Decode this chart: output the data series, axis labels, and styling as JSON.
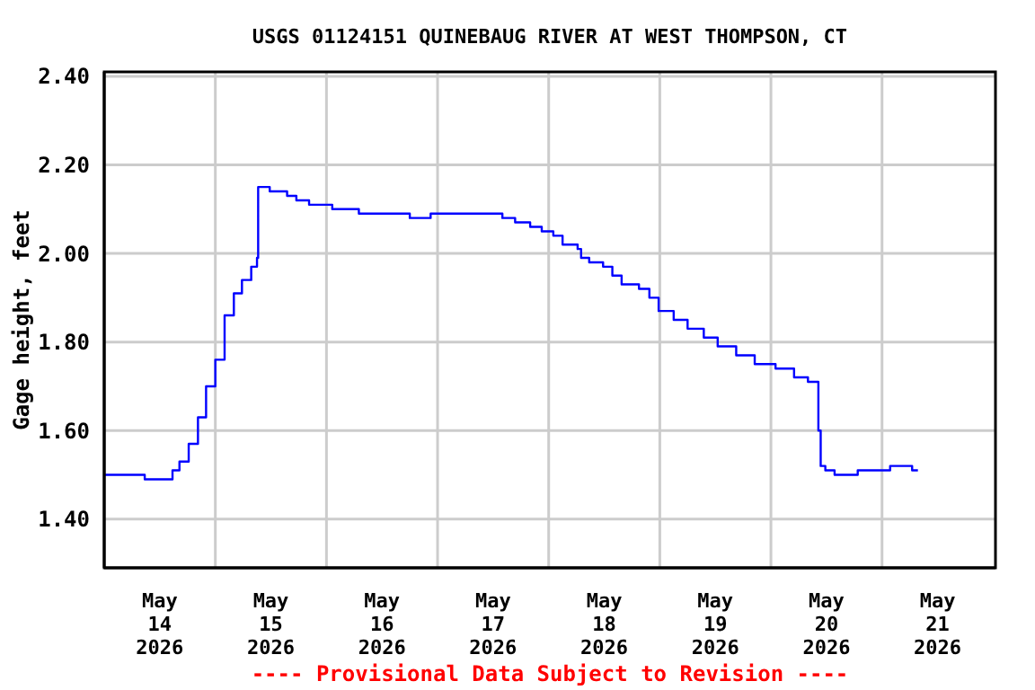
{
  "chart_data": {
    "type": "step",
    "title": "USGS 01124151 QUINEBAUG RIVER AT WEST THOMPSON, CT",
    "ylabel": "Gage height, feet",
    "annotations": [
      "---- Provisional Data Subject to Revision ----"
    ],
    "x": [
      "2026-05-13T12:00",
      "2026-05-13T20:45",
      "2026-05-14T02:45",
      "2026-05-14T04:15",
      "2026-05-14T06:15",
      "2026-05-14T08:15",
      "2026-05-14T10:00",
      "2026-05-14T12:00",
      "2026-05-14T14:00",
      "2026-05-14T16:00",
      "2026-05-14T17:45",
      "2026-05-14T19:45",
      "2026-05-14T21:00",
      "2026-05-14T21:15",
      "2026-05-14T23:45",
      "2026-05-15T03:30",
      "2026-05-15T05:30",
      "2026-05-15T08:15",
      "2026-05-15T13:15",
      "2026-05-15T19:00",
      "2026-05-16T06:00",
      "2026-05-16T10:30",
      "2026-05-16T21:30",
      "2026-05-17T02:00",
      "2026-05-17T04:45",
      "2026-05-17T08:00",
      "2026-05-17T10:30",
      "2026-05-17T13:00",
      "2026-05-17T15:00",
      "2026-05-17T18:15",
      "2026-05-17T19:00",
      "2026-05-17T20:45",
      "2026-05-17T23:45",
      "2026-05-18T01:45",
      "2026-05-18T03:45",
      "2026-05-18T07:30",
      "2026-05-18T09:45",
      "2026-05-18T11:45",
      "2026-05-18T15:00",
      "2026-05-18T18:00",
      "2026-05-18T21:30",
      "2026-05-19T00:30",
      "2026-05-19T04:30",
      "2026-05-19T08:30",
      "2026-05-19T13:00",
      "2026-05-19T17:00",
      "2026-05-19T20:00",
      "2026-05-19T22:15",
      "2026-05-19T22:45",
      "2026-05-19T23:45",
      "2026-05-20T01:45",
      "2026-05-20T06:45",
      "2026-05-20T13:45",
      "2026-05-20T18:30",
      "2026-05-20T19:45"
    ],
    "values": [
      1.5,
      1.49,
      1.51,
      1.53,
      1.57,
      1.63,
      1.7,
      1.76,
      1.86,
      1.91,
      1.94,
      1.97,
      1.99,
      2.15,
      2.14,
      2.13,
      2.12,
      2.11,
      2.1,
      2.09,
      2.08,
      2.09,
      2.09,
      2.08,
      2.07,
      2.06,
      2.05,
      2.04,
      2.02,
      2.01,
      1.99,
      1.98,
      1.97,
      1.95,
      1.93,
      1.92,
      1.9,
      1.87,
      1.85,
      1.83,
      1.81,
      1.79,
      1.77,
      1.75,
      1.74,
      1.72,
      1.71,
      1.6,
      1.52,
      1.51,
      1.5,
      1.51,
      1.52,
      1.51,
      1.51
    ],
    "color": "#0000ff",
    "xlim": [
      "2026-05-13T12:00",
      "2026-05-21T12:30"
    ],
    "xticks": [
      {
        "value": "2026-05-14",
        "label": "May\n14\n2026"
      },
      {
        "value": "2026-05-14T12:00",
        "label": null
      },
      {
        "value": "2026-05-15",
        "label": "May\n15\n2026"
      },
      {
        "value": "2026-05-15T12:00",
        "label": null
      },
      {
        "value": "2026-05-16",
        "label": "May\n16\n2026"
      },
      {
        "value": "2026-05-16T12:00",
        "label": null
      },
      {
        "value": "2026-05-17",
        "label": "May\n17\n2026"
      },
      {
        "value": "2026-05-17T12:00",
        "label": null
      },
      {
        "value": "2026-05-18",
        "label": "May\n18\n2026"
      },
      {
        "value": "2026-05-18T12:00",
        "label": null
      },
      {
        "value": "2026-05-19",
        "label": "May\n19\n2026"
      },
      {
        "value": "2026-05-19T12:00",
        "label": null
      },
      {
        "value": "2026-05-20",
        "label": "May\n20\n2026"
      },
      {
        "value": "2026-05-20T12:00",
        "label": null
      },
      {
        "value": "2026-05-21",
        "label": "May\n21\n2026"
      }
    ],
    "ylim": [
      1.29,
      2.41
    ],
    "yticks": [
      {
        "value": 1.4,
        "label": "1.40"
      },
      {
        "value": 1.6,
        "label": "1.60"
      },
      {
        "value": 1.8,
        "label": "1.80"
      },
      {
        "value": 2.0,
        "label": "2.00"
      },
      {
        "value": 2.2,
        "label": "2.20"
      },
      {
        "value": 2.4,
        "label": "2.40"
      }
    ],
    "grid": true,
    "marker": "none",
    "line_style": "solid"
  }
}
